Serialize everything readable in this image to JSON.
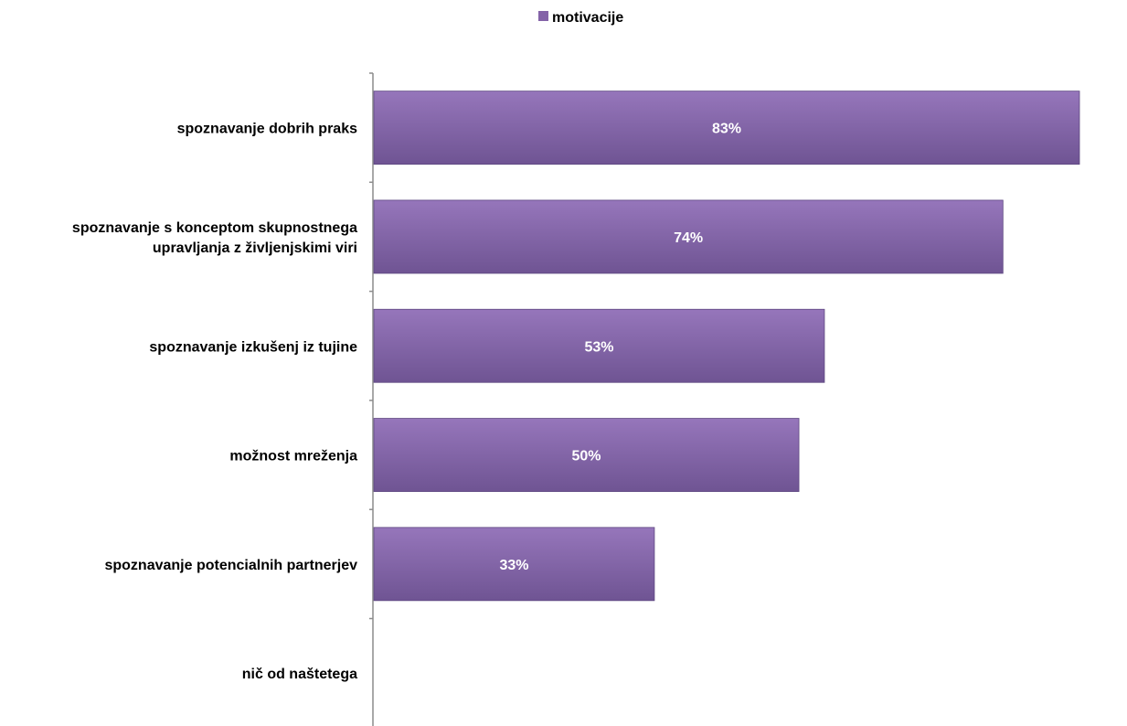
{
  "chart_data": {
    "type": "bar",
    "orientation": "horizontal",
    "categories": [
      [
        "spoznavanje dobrih praks"
      ],
      [
        "spoznavanje s konceptom skupnostnega",
        "upravljanja z življenjskimi viri"
      ],
      [
        "spoznavanje izkušenj iz tujine"
      ],
      [
        "možnost mreženja"
      ],
      [
        "spoznavanje potencialnih partnerjev"
      ],
      [
        "nič od naštetega"
      ]
    ],
    "series": [
      {
        "name": "motivacije",
        "values": [
          83,
          74,
          53,
          50,
          33,
          0
        ],
        "data_labels": [
          "83%",
          "74%",
          "53%",
          "50%",
          "33%",
          ""
        ]
      }
    ],
    "xlim": [
      0,
      83
    ],
    "legend_position": "top",
    "grid": false,
    "colors": {
      "bar_top": "#9676bb",
      "bar_bottom": "#6f5493",
      "bar_edge": "#5d4680",
      "axis": "#8c8c8c",
      "legend_swatch": "#8463a8"
    }
  }
}
